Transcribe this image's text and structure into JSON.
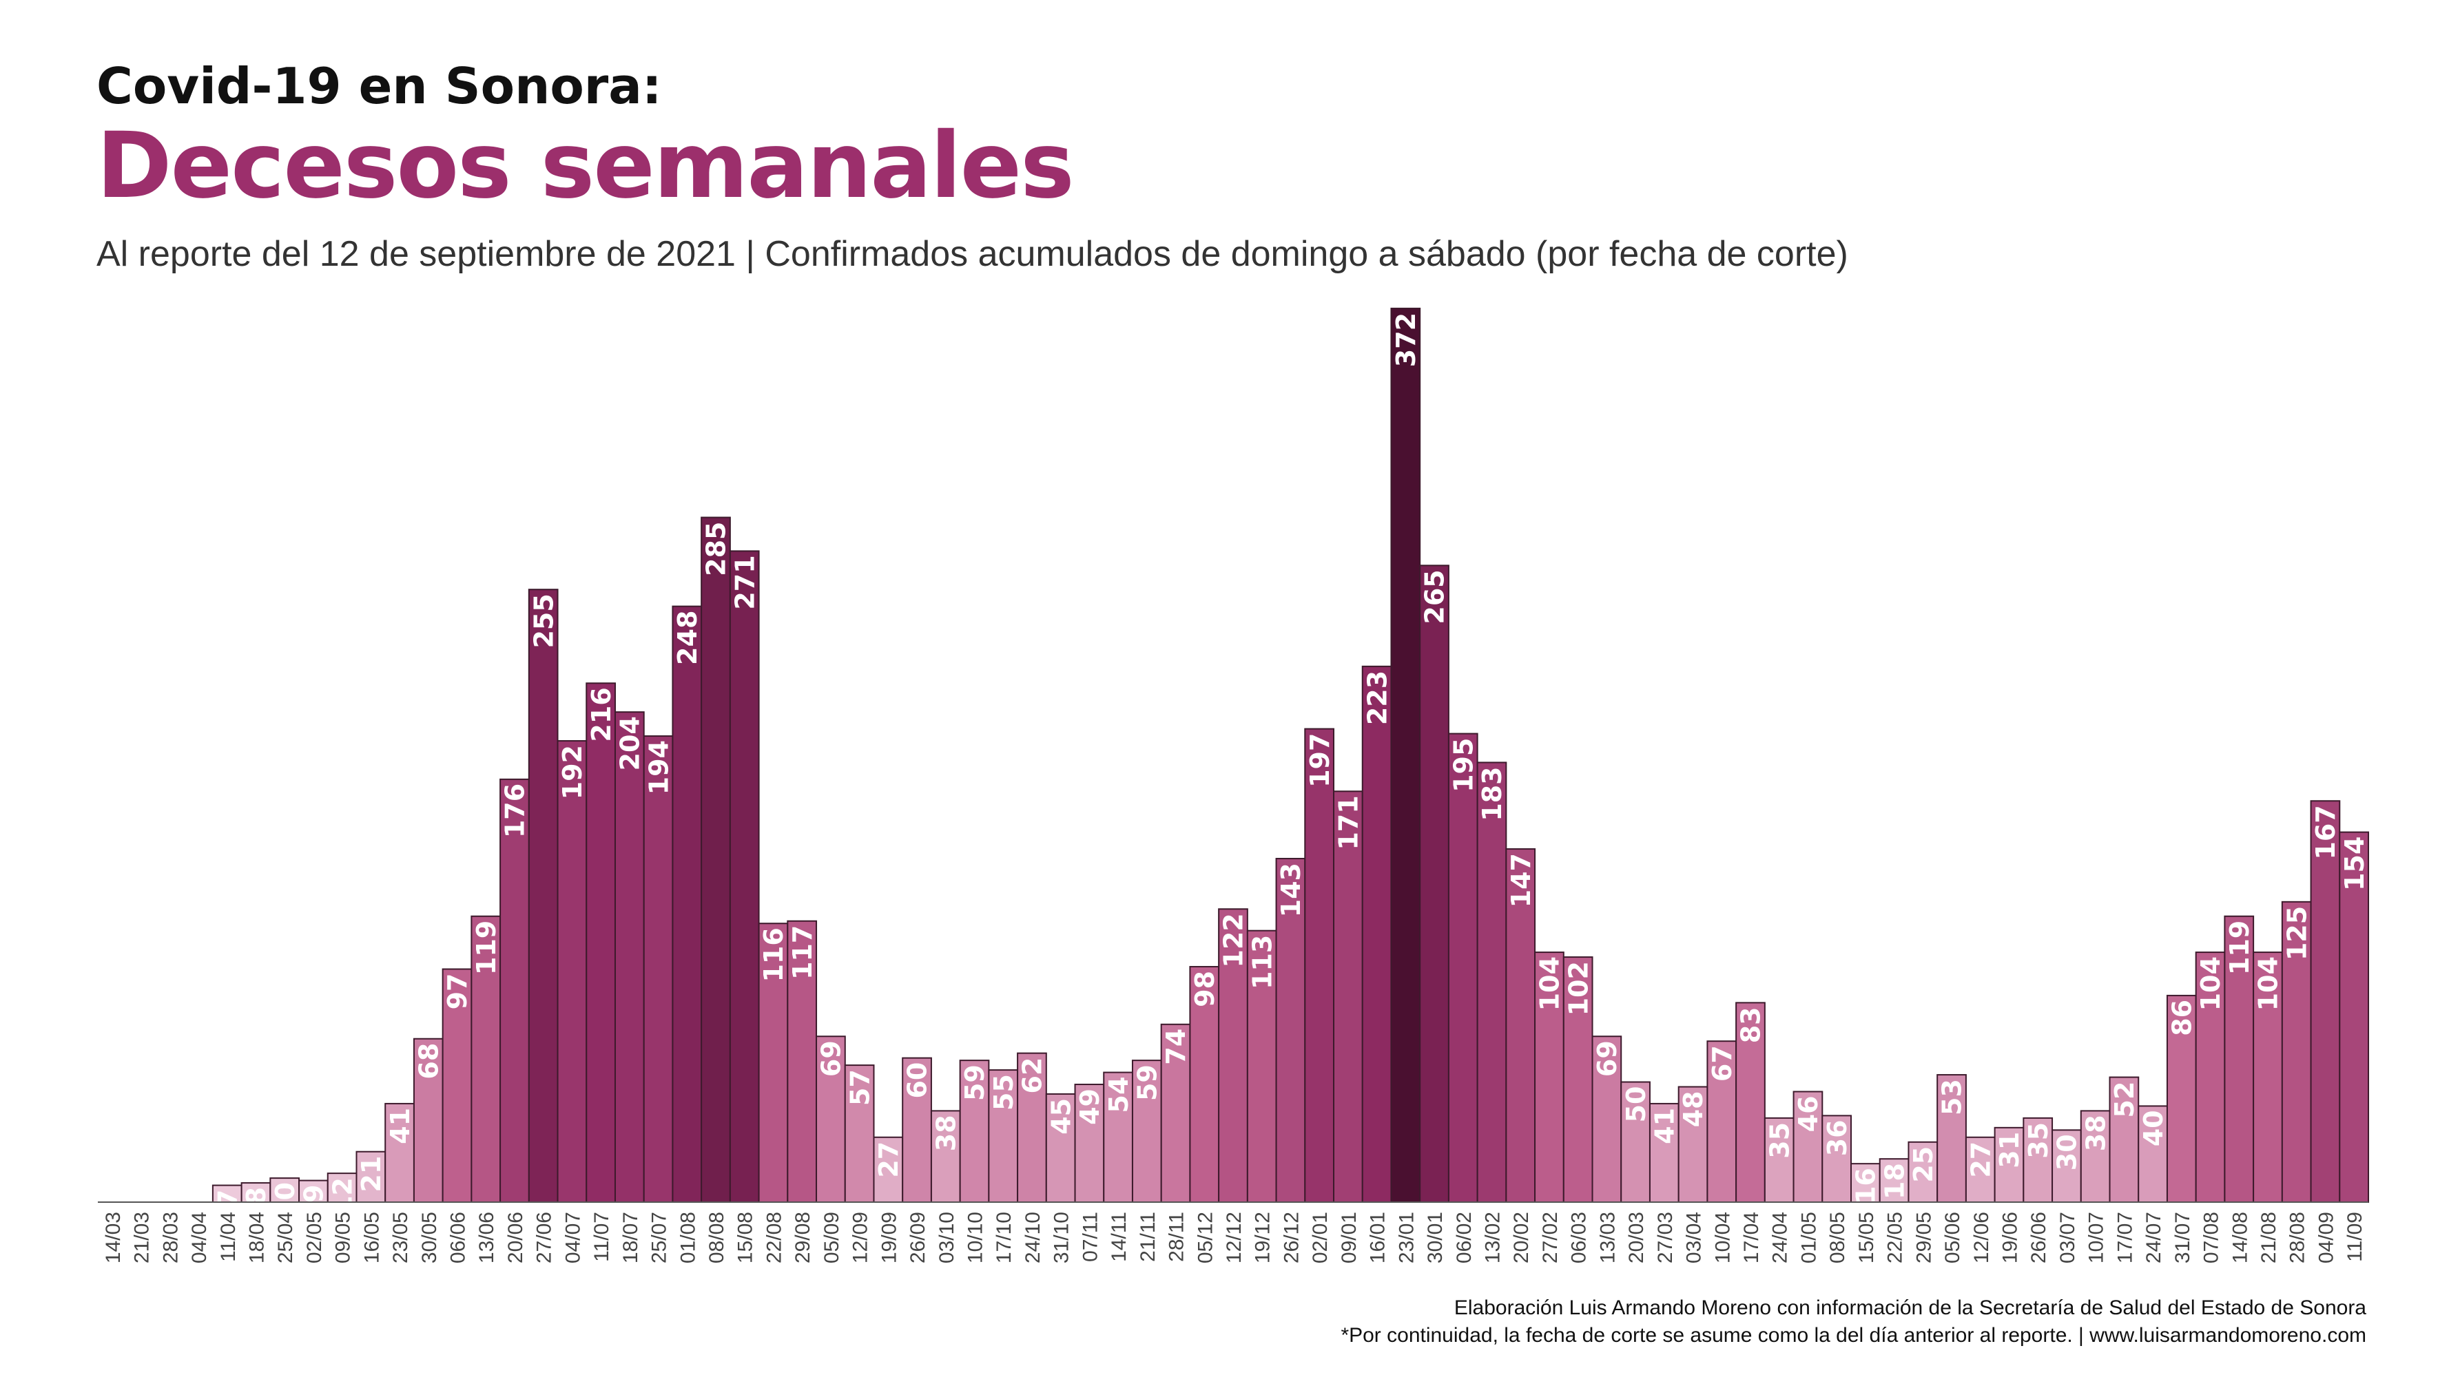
{
  "header": {
    "title_top": "Covid-19 en Sonora:",
    "title_main": "Decesos semanales",
    "subtitle": "Al reporte del 12 de septiembre de 2021 | Confirmados acumulados de domingo a sábado (por fecha de corte)"
  },
  "footer": {
    "line1": "Elaboración Luis Armando Moreno con información de la Secretaría de Salud del Estado de Sonora",
    "line2": "*Por continuidad, la fecha de corte se asume como la del día anterior al reporte. | www.luisarmandomoreno.com"
  },
  "colors": {
    "light": "#f3d9e6",
    "mid": "#c0628f",
    "dark": "#8e2a62",
    "darkest": "#4a1030",
    "outline": "#3d1a2c",
    "label_light": "#ffffff"
  },
  "chart_data": {
    "type": "bar",
    "title": "Decesos semanales",
    "xlabel": "",
    "ylabel": "",
    "ylim": [
      0,
      380
    ],
    "grid": false,
    "legend": "none",
    "categories": [
      "14/03",
      "21/03",
      "28/03",
      "04/04",
      "11/04",
      "18/04",
      "25/04",
      "02/05",
      "09/05",
      "16/05",
      "23/05",
      "30/05",
      "06/06",
      "13/06",
      "20/06",
      "27/06",
      "04/07",
      "11/07",
      "18/07",
      "25/07",
      "01/08",
      "08/08",
      "15/08",
      "22/08",
      "29/08",
      "05/09",
      "12/09",
      "19/09",
      "26/09",
      "03/10",
      "10/10",
      "17/10",
      "24/10",
      "31/10",
      "07/11",
      "14/11",
      "21/11",
      "28/11",
      "05/12",
      "12/12",
      "19/12",
      "26/12",
      "02/01",
      "09/01",
      "16/01",
      "23/01",
      "30/01",
      "06/02",
      "13/02",
      "20/02",
      "27/02",
      "06/03",
      "13/03",
      "20/03",
      "27/03",
      "03/04",
      "10/04",
      "17/04",
      "24/04",
      "01/05",
      "08/05",
      "15/05",
      "22/05",
      "29/05",
      "05/06",
      "12/06",
      "19/06",
      "26/06",
      "03/07",
      "10/07",
      "17/07",
      "24/07",
      "31/07",
      "07/08",
      "14/08",
      "21/08",
      "28/08",
      "04/09",
      "11/09"
    ],
    "values": [
      0,
      0,
      0,
      0,
      7,
      8,
      10,
      9,
      12,
      21,
      41,
      68,
      97,
      119,
      176,
      255,
      192,
      216,
      204,
      194,
      248,
      285,
      271,
      116,
      117,
      69,
      57,
      27,
      60,
      38,
      59,
      55,
      62,
      45,
      49,
      54,
      59,
      74,
      98,
      122,
      113,
      143,
      197,
      171,
      223,
      372,
      265,
      195,
      183,
      147,
      104,
      102,
      69,
      50,
      41,
      48,
      67,
      83,
      35,
      46,
      36,
      16,
      18,
      25,
      53,
      27,
      31,
      35,
      30,
      38,
      52,
      40,
      86,
      104,
      119,
      104,
      125,
      167,
      154
    ]
  }
}
